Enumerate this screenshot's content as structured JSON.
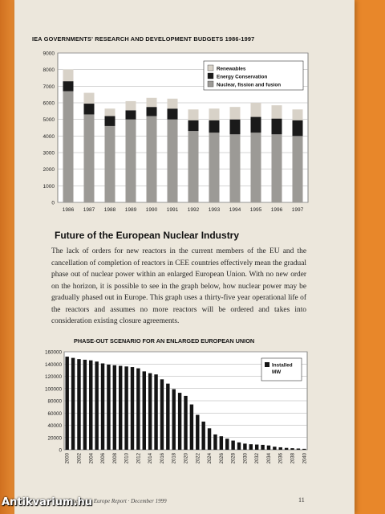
{
  "document": {
    "section_title": "Future of the European Nuclear Industry",
    "body_text": "The lack of orders for new reactors in the current members of the EU and the cancellation of completion of reactors in CEE countries effectively mean the gradual phase out of nuclear power within an enlarged European Union. With no new order on the horizon, it is possible to see in the graph below, how nuclear power may be gradually phased out in Europe. This graph uses a thirty-five year operational life of the reactors and assumes no more reactors will be ordered and takes into consideration existing closure agreements.",
    "footer_text": "Friends of the Earth Europe Report · December 1999",
    "page_number": "11",
    "watermark": "Antikvarium.hu"
  },
  "colors": {
    "renewables": "#d8d2c8",
    "energy_conservation": "#1a1a1a",
    "nuclear": "#9c9a96",
    "bar_dark": "#141414",
    "plot_bg": "#ffffff"
  },
  "chart_data": [
    {
      "type": "bar",
      "stacked": true,
      "title": "IEA GOVERNMENTS' RESEARCH AND DEVELOPMENT BUDGETS 1986-1997",
      "categories": [
        "1986",
        "1987",
        "1988",
        "1989",
        "1990",
        "1991",
        "1992",
        "1993",
        "1994",
        "1995",
        "1996",
        "1997"
      ],
      "series": [
        {
          "name": "Nuclear, fission and fusion",
          "values": [
            6700,
            5300,
            4600,
            5000,
            5200,
            5000,
            4300,
            4200,
            4100,
            4200,
            4100,
            4000
          ]
        },
        {
          "name": "Energy Conservation",
          "values": [
            600,
            650,
            600,
            550,
            550,
            650,
            650,
            750,
            900,
            950,
            950,
            950
          ]
        },
        {
          "name": "Renewables",
          "values": [
            700,
            650,
            450,
            550,
            550,
            600,
            650,
            700,
            750,
            850,
            800,
            650
          ]
        }
      ],
      "ylim": [
        0,
        9000
      ],
      "yticks": [
        0,
        1000,
        2000,
        3000,
        4000,
        5000,
        6000,
        7000,
        8000,
        9000
      ],
      "grid": true,
      "legend": "top-right"
    },
    {
      "type": "bar",
      "title": "PHASE-OUT SCENARIO FOR AN ENLARGED EUROPEAN UNION",
      "legend_label": "Installed MW",
      "x": [
        2000,
        2001,
        2002,
        2003,
        2004,
        2005,
        2006,
        2007,
        2008,
        2009,
        2010,
        2011,
        2012,
        2013,
        2014,
        2015,
        2016,
        2017,
        2018,
        2019,
        2020,
        2021,
        2022,
        2023,
        2024,
        2025,
        2026,
        2027,
        2028,
        2029,
        2030,
        2031,
        2032,
        2033,
        2034,
        2035,
        2036,
        2037,
        2038,
        2039,
        2040
      ],
      "xtick_labels": [
        "2000",
        "2002",
        "2004",
        "2006",
        "2008",
        "2010",
        "2012",
        "2014",
        "2016",
        "2018",
        "2020",
        "2022",
        "2024",
        "2026",
        "2028",
        "2030",
        "2032",
        "2034",
        "2036",
        "2038",
        "2040"
      ],
      "values": [
        152000,
        150000,
        148000,
        147000,
        146000,
        144000,
        141000,
        139000,
        138000,
        137000,
        136000,
        135000,
        133000,
        128000,
        125000,
        123000,
        115000,
        108000,
        99000,
        93000,
        88000,
        74000,
        57000,
        46000,
        35000,
        25000,
        22000,
        18000,
        15000,
        12000,
        10000,
        9000,
        8500,
        8000,
        7000,
        5000,
        4000,
        3000,
        2500,
        2000,
        1500
      ],
      "ylim": [
        0,
        160000
      ],
      "yticks": [
        0,
        20000,
        40000,
        60000,
        80000,
        100000,
        120000,
        140000,
        160000
      ],
      "grid": true,
      "legend": "top-right"
    }
  ]
}
